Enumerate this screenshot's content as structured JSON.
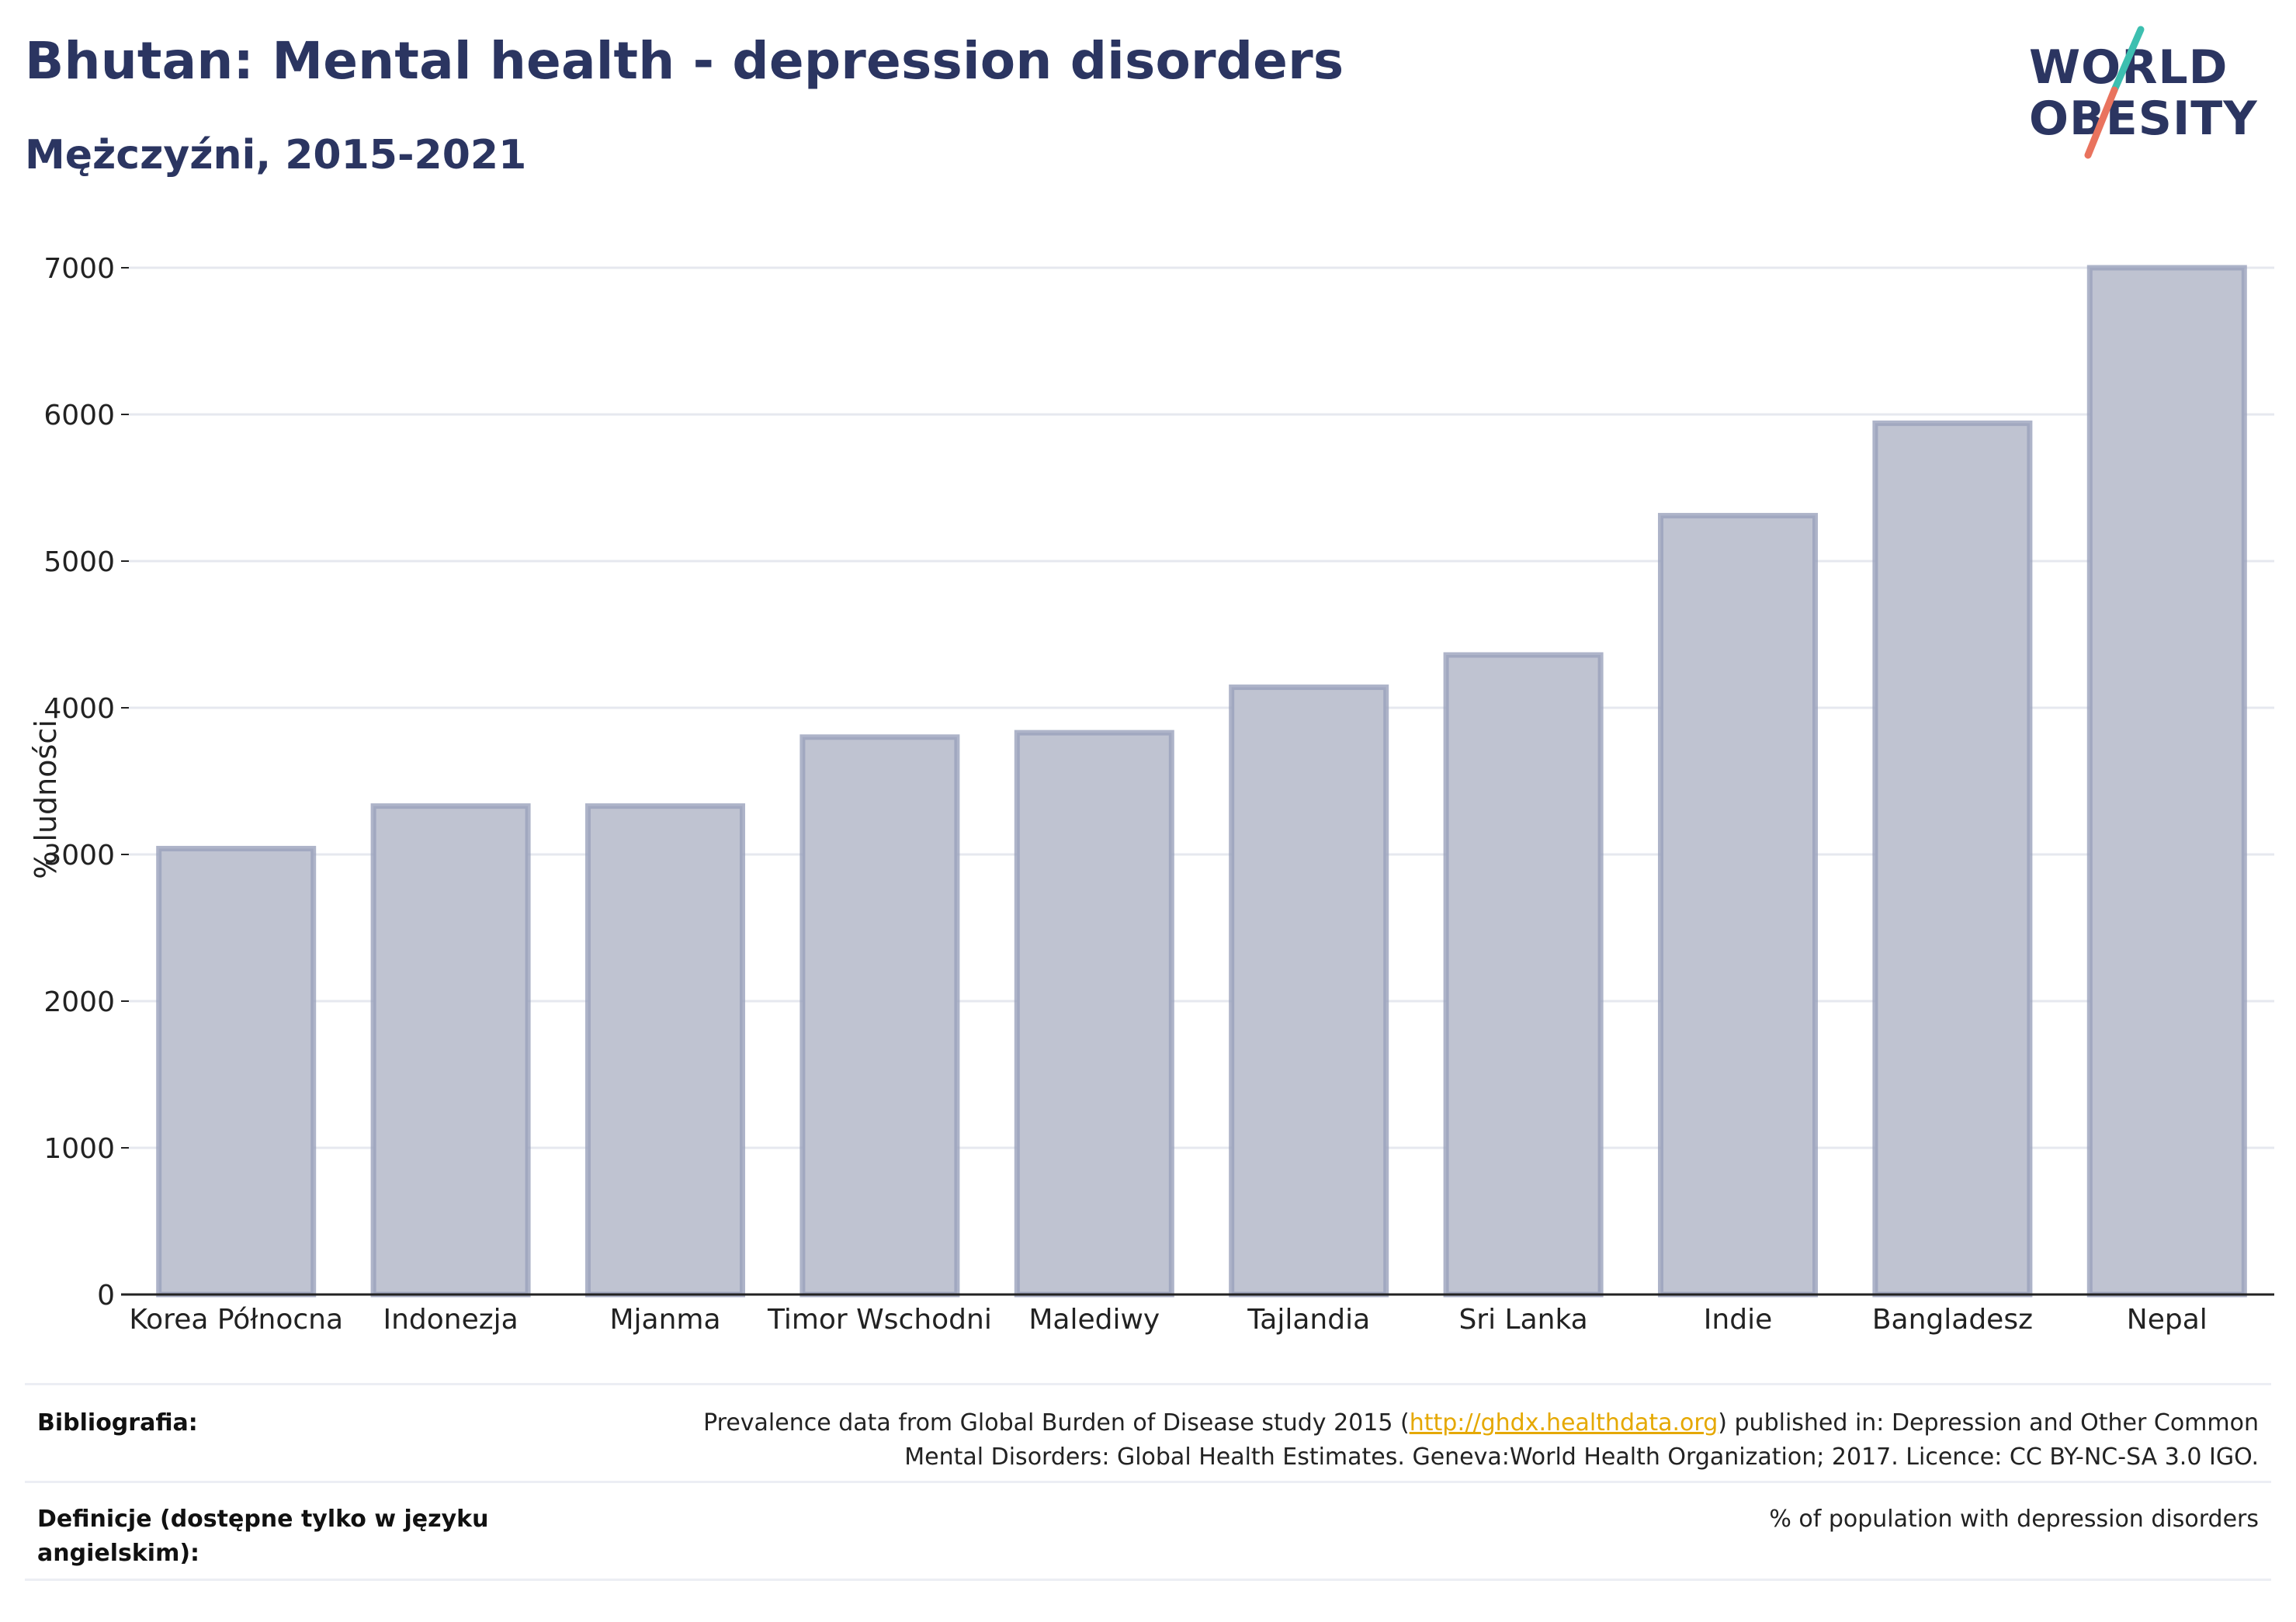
{
  "header": {
    "title": "Bhutan: Mental health - depression disorders",
    "subtitle": "Mężczyźni, 2015-2021"
  },
  "logo": {
    "line1": "WORLD",
    "line2": "OBESITY",
    "colors": {
      "text": "#2b3561",
      "slash_top": "#3dbfb0",
      "slash_bottom": "#e9735e"
    }
  },
  "chart_data": {
    "type": "bar",
    "categories": [
      "Korea Północna",
      "Indonezja",
      "Mjanma",
      "Timor Wschodni",
      "Malediwy",
      "Tajlandia",
      "Sri Lanka",
      "Indie",
      "Bangladesz",
      "Nepal"
    ],
    "values": [
      3040,
      3330,
      3330,
      3800,
      3830,
      4140,
      4360,
      5310,
      5940,
      7000
    ],
    "ylabel": "% ludności",
    "xlabel": "",
    "ylim": [
      0,
      7000
    ],
    "yticks": [
      0,
      1000,
      2000,
      3000,
      4000,
      5000,
      6000,
      7000
    ],
    "grid": true,
    "colors": {
      "bar_fill": "#bfc3d1",
      "bar_stroke": "#9aa1bb",
      "axis": "#222222",
      "grid": "#e6e8ef"
    }
  },
  "footer": {
    "bibliography_label": "Bibliografia:",
    "bibliography_pre": "Prevalence data from Global Burden of Disease study 2015 (",
    "bibliography_link": "http://ghdx.healthdata.org",
    "bibliography_post": ") published in: Depression and Other Common",
    "bibliography_line2": "Mental Disorders: Global Health Estimates. Geneva:World Health Organization; 2017. Licence: CC BY-NC-SA 3.0 IGO.",
    "definitions_label_line1": "Definicje (dostępne tylko w języku",
    "definitions_label_line2": "angielskim):",
    "definitions_text": "% of population with depression disorders"
  }
}
